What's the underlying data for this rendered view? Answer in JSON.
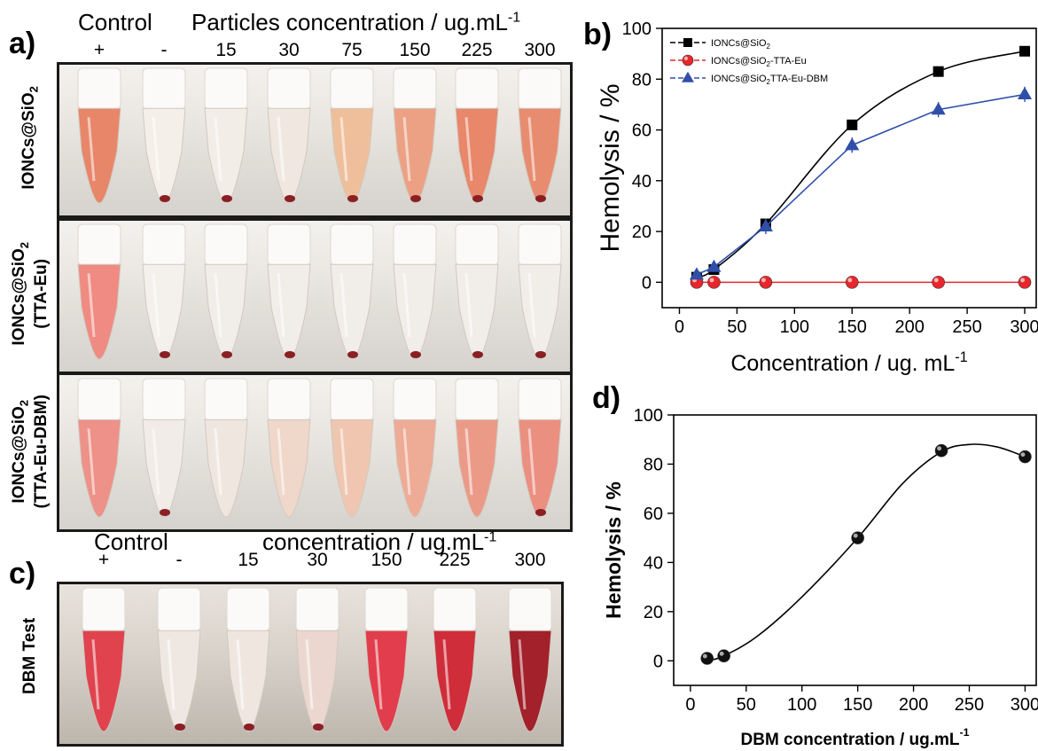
{
  "panels": {
    "a": "a)",
    "b": "b)",
    "c": "c)",
    "d": "d)"
  },
  "panel_a": {
    "control_label": "Control",
    "conc_label": "Particles concentration / ug.mL",
    "conc_sup": "-1",
    "columns": [
      "+",
      "-",
      "15",
      "30",
      "75",
      "150",
      "225",
      "300"
    ],
    "row_label_1": "IONCs@SiO",
    "row_label_1_sub": "2",
    "row_label_2_line1": "IONCs@SiO",
    "row_label_2_sub": "2",
    "row_label_2_line2": "(TTA-Eu)",
    "row_label_3_line1": "IONCs@SiO",
    "row_label_3_sub": "2",
    "row_label_3_line2": "(TTA-Eu-DBM)",
    "rows": [
      {
        "tubes": [
          "#e8866a",
          "#f4efe9",
          "#f2ede6",
          "#f0e8e0",
          "#efbf9c",
          "#eca184",
          "#e8876a",
          "#e88c70"
        ],
        "pellet": [
          false,
          true,
          true,
          true,
          true,
          true,
          true,
          true
        ]
      },
      {
        "tubes": [
          "#ef8b82",
          "#f4f0ec",
          "#f1ede8",
          "#f1ede8",
          "#f1ede8",
          "#f1ede8",
          "#f1ede8",
          "#f1ede8"
        ],
        "pellet": [
          false,
          true,
          true,
          true,
          true,
          true,
          true,
          true
        ]
      },
      {
        "tubes": [
          "#ee9188",
          "#f1ece7",
          "#f0e6e0",
          "#efd7c9",
          "#f0c6b0",
          "#eeab96",
          "#ec9a88",
          "#eb8f80"
        ],
        "pellet": [
          false,
          true,
          false,
          false,
          false,
          false,
          false,
          true
        ]
      }
    ]
  },
  "panel_c": {
    "control_label": "Control",
    "conc_label": "concentration / ug.mL",
    "conc_sup": "-1",
    "columns": [
      "+",
      "-",
      "15",
      "30",
      "150",
      "225",
      "300"
    ],
    "row_label": "DBM Test",
    "tubes": [
      "#e0434e",
      "#efe8e2",
      "#efe6e0",
      "#ecd7d0",
      "#e23d4c",
      "#cf2d3a",
      "#a2212a"
    ],
    "pellet": [
      false,
      true,
      true,
      true,
      false,
      false,
      false
    ]
  },
  "chart_data": [
    {
      "type": "line",
      "panel": "b",
      "xlabel": "Concentration / ug. mL",
      "xlabel_sup": "-1",
      "ylabel": "Hemolysis / %",
      "xlim": [
        -15,
        310
      ],
      "ylim": [
        -10,
        100
      ],
      "xticks": [
        0,
        50,
        100,
        150,
        200,
        250,
        300
      ],
      "yticks": [
        0,
        20,
        40,
        60,
        80,
        100
      ],
      "legend_position": "top-left",
      "series": [
        {
          "name": "IONCs@SiO",
          "name_sub": "2",
          "name_rest": "",
          "color": "#000000",
          "marker": "square",
          "x": [
            15,
            30,
            75,
            150,
            225,
            300
          ],
          "y": [
            2,
            5,
            23,
            62,
            83,
            91
          ],
          "err": [
            1,
            2,
            2,
            1,
            1,
            1
          ],
          "smooth": true
        },
        {
          "name": "IONCs@SiO",
          "name_sub": "2",
          "name_rest": "-TTA-Eu",
          "color": "#e8262b",
          "marker": "sphere",
          "x": [
            15,
            30,
            75,
            150,
            225,
            300
          ],
          "y": [
            0,
            0,
            0,
            0,
            0,
            0
          ],
          "err": [
            0,
            0,
            0,
            0,
            0,
            0
          ],
          "smooth": false
        },
        {
          "name": "IONCs@SiO",
          "name_sub": "2",
          "name_rest": "TTA-Eu-DBM",
          "color": "#2f4fa8",
          "marker": "triangle",
          "x": [
            15,
            30,
            75,
            150,
            225,
            300
          ],
          "y": [
            3,
            6,
            22,
            54,
            68,
            74
          ],
          "err": [
            1,
            2,
            3,
            3,
            3,
            3
          ],
          "smooth": false
        }
      ]
    },
    {
      "type": "scatter",
      "panel": "d",
      "xlabel": "DBM concentration / ug.mL",
      "xlabel_sup": "-1",
      "ylabel": "Hemolysis / %",
      "xlim": [
        -15,
        310
      ],
      "ylim": [
        -10,
        100
      ],
      "xticks": [
        0,
        50,
        100,
        150,
        200,
        250,
        300
      ],
      "yticks": [
        0,
        20,
        40,
        60,
        80,
        100
      ],
      "series": [
        {
          "color": "#000000",
          "marker": "sphere",
          "x": [
            15,
            30,
            150,
            225,
            300
          ],
          "y": [
            1,
            2,
            50,
            85.5,
            83
          ]
        }
      ],
      "fit_curve": {
        "x": [
          15,
          30,
          60,
          100,
          150,
          190,
          225,
          250,
          275,
          300
        ],
        "y": [
          0,
          2,
          10,
          26,
          50,
          72,
          85,
          88,
          87,
          83
        ]
      }
    }
  ]
}
